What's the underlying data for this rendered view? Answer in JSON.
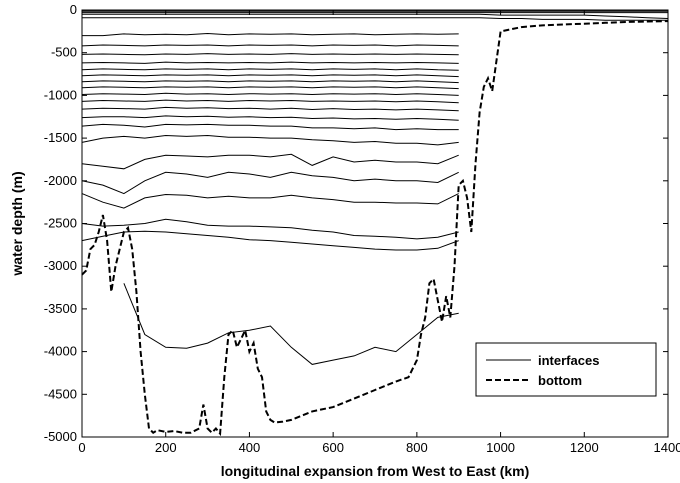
{
  "chart_data": {
    "type": "line",
    "xlabel": "longitudinal expansion from West to East (km)",
    "ylabel": "water depth (m)",
    "xlim": [
      0,
      1400
    ],
    "ylim": [
      -5000,
      0
    ],
    "xticks": [
      0,
      200,
      400,
      600,
      800,
      1000,
      1200,
      1400
    ],
    "yticks": [
      0,
      -500,
      -1000,
      -1500,
      -2000,
      -2500,
      -3000,
      -3500,
      -4000,
      -4500,
      -5000
    ],
    "grid": false,
    "legend_position": "lower-right",
    "legend": [
      "interfaces",
      "bottom"
    ],
    "bottom": {
      "name": "bottom",
      "style": "dashed",
      "x": [
        0,
        10,
        20,
        30,
        40,
        50,
        60,
        70,
        80,
        90,
        100,
        110,
        120,
        130,
        140,
        150,
        160,
        170,
        180,
        200,
        220,
        240,
        260,
        280,
        290,
        300,
        310,
        320,
        330,
        340,
        350,
        360,
        370,
        380,
        390,
        400,
        410,
        420,
        430,
        440,
        450,
        460,
        480,
        500,
        550,
        600,
        650,
        700,
        750,
        780,
        800,
        810,
        820,
        830,
        840,
        850,
        860,
        870,
        880,
        890,
        900,
        910,
        920,
        930,
        940,
        950,
        960,
        970,
        980,
        990,
        1000,
        1050,
        1100,
        1150,
        1200,
        1250,
        1300,
        1350,
        1400
      ],
      "y": [
        -3100,
        -3050,
        -2800,
        -2750,
        -2600,
        -2400,
        -2700,
        -3300,
        -3000,
        -2800,
        -2600,
        -2550,
        -2800,
        -3300,
        -4000,
        -4500,
        -4900,
        -4950,
        -4920,
        -4940,
        -4930,
        -4950,
        -4950,
        -4900,
        -4620,
        -4900,
        -4950,
        -4900,
        -4960,
        -4300,
        -3800,
        -3750,
        -3950,
        -3850,
        -3750,
        -4000,
        -3900,
        -4200,
        -4300,
        -4700,
        -4800,
        -4830,
        -4820,
        -4800,
        -4700,
        -4650,
        -4550,
        -4450,
        -4350,
        -4300,
        -4100,
        -3800,
        -3600,
        -3200,
        -3150,
        -3400,
        -3650,
        -3350,
        -3600,
        -3000,
        -2050,
        -2000,
        -2200,
        -2600,
        -1800,
        -1200,
        -900,
        -800,
        -950,
        -600,
        -250,
        -200,
        -180,
        -170,
        -160,
        -150,
        -140,
        -135,
        -130
      ]
    },
    "interfaces": {
      "name": "interfaces",
      "style": "solid",
      "x": [
        0,
        50,
        100,
        150,
        200,
        250,
        300,
        350,
        400,
        450,
        500,
        550,
        600,
        650,
        700,
        750,
        800,
        850,
        900
      ],
      "layers": [
        [
          -300,
          -300,
          -280,
          -290,
          -285,
          -290,
          -275,
          -290,
          -280,
          -285,
          -280,
          -290,
          -285,
          -280,
          -290,
          -285,
          -280,
          -285,
          -280
        ],
        [
          -420,
          -410,
          -415,
          -420,
          -410,
          -415,
          -410,
          -420,
          -410,
          -415,
          -410,
          -420,
          -410,
          -415,
          -410,
          -420,
          -410,
          -415,
          -420
        ],
        [
          -520,
          -515,
          -520,
          -525,
          -515,
          -520,
          -510,
          -520,
          -515,
          -520,
          -510,
          -520,
          -515,
          -520,
          -515,
          -520,
          -515,
          -520,
          -525
        ],
        [
          -620,
          -615,
          -620,
          -625,
          -610,
          -620,
          -615,
          -620,
          -615,
          -620,
          -610,
          -620,
          -615,
          -620,
          -615,
          -620,
          -615,
          -620,
          -625
        ],
        [
          -700,
          -690,
          -695,
          -700,
          -690,
          -695,
          -690,
          -700,
          -690,
          -695,
          -690,
          -700,
          -690,
          -695,
          -690,
          -700,
          -690,
          -700,
          -705
        ],
        [
          -770,
          -760,
          -765,
          -770,
          -760,
          -765,
          -760,
          -770,
          -760,
          -765,
          -760,
          -770,
          -760,
          -765,
          -760,
          -770,
          -760,
          -770,
          -780
        ],
        [
          -840,
          -830,
          -835,
          -840,
          -830,
          -835,
          -830,
          -840,
          -830,
          -835,
          -830,
          -840,
          -830,
          -835,
          -830,
          -840,
          -830,
          -840,
          -850
        ],
        [
          -910,
          -900,
          -905,
          -910,
          -900,
          -905,
          -900,
          -910,
          -900,
          -905,
          -900,
          -910,
          -900,
          -905,
          -900,
          -910,
          -900,
          -910,
          -920
        ],
        [
          -990,
          -980,
          -985,
          -990,
          -975,
          -985,
          -980,
          -990,
          -980,
          -985,
          -980,
          -990,
          -980,
          -985,
          -980,
          -990,
          -980,
          -990,
          -1000
        ],
        [
          -1070,
          -1060,
          -1065,
          -1070,
          -1055,
          -1065,
          -1060,
          -1070,
          -1060,
          -1065,
          -1060,
          -1070,
          -1065,
          -1070,
          -1065,
          -1075,
          -1065,
          -1075,
          -1085
        ],
        [
          -1160,
          -1150,
          -1155,
          -1160,
          -1140,
          -1150,
          -1145,
          -1155,
          -1150,
          -1160,
          -1150,
          -1165,
          -1155,
          -1165,
          -1160,
          -1170,
          -1160,
          -1170,
          -1180
        ],
        [
          -1260,
          -1250,
          -1250,
          -1260,
          -1240,
          -1250,
          -1245,
          -1255,
          -1250,
          -1260,
          -1255,
          -1270,
          -1265,
          -1275,
          -1270,
          -1280,
          -1270,
          -1280,
          -1290
        ],
        [
          -1360,
          -1340,
          -1350,
          -1370,
          -1340,
          -1345,
          -1340,
          -1350,
          -1350,
          -1360,
          -1360,
          -1380,
          -1380,
          -1390,
          -1380,
          -1400,
          -1390,
          -1400,
          -1400
        ],
        [
          -1550,
          -1500,
          -1480,
          -1500,
          -1470,
          -1480,
          -1470,
          -1490,
          -1490,
          -1500,
          -1500,
          -1520,
          -1530,
          -1550,
          -1540,
          -1560,
          -1560,
          -1580,
          -1550
        ],
        [
          -1800,
          -1830,
          -1860,
          -1750,
          -1700,
          -1710,
          -1720,
          -1700,
          -1700,
          -1720,
          -1690,
          -1820,
          -1720,
          -1780,
          -1760,
          -1780,
          -1780,
          -1800,
          -1700
        ],
        [
          -2000,
          -2050,
          -2150,
          -2000,
          -1900,
          -1920,
          -1960,
          -1900,
          -1920,
          -1960,
          -1900,
          -1940,
          -1960,
          -2000,
          -1980,
          -2000,
          -2000,
          -2020,
          -1900
        ],
        [
          -2150,
          -2250,
          -2320,
          -2200,
          -2160,
          -2170,
          -2200,
          -2180,
          -2200,
          -2200,
          -2170,
          -2200,
          -2220,
          -2250,
          -2250,
          -2260,
          -2260,
          -2270,
          -2150
        ],
        [
          -2500,
          -2530,
          -2520,
          -2500,
          -2450,
          -2480,
          -2520,
          -2530,
          -2530,
          -2540,
          -2550,
          -2580,
          -2600,
          -2640,
          -2650,
          -2660,
          -2680,
          -2660,
          -2600
        ],
        [
          -2700,
          -2650,
          -2600,
          -2590,
          -2600,
          -2620,
          -2640,
          -2660,
          -2690,
          -2700,
          -2720,
          -2740,
          -2760,
          -2780,
          -2800,
          -2810,
          -2810,
          -2790,
          -2700
        ],
        [
          null,
          null,
          -3200,
          -3800,
          -3950,
          -3960,
          -3900,
          -3780,
          -3750,
          -3700,
          -3950,
          -4150,
          -4100,
          -4050,
          -3950,
          -4000,
          -3800,
          -3600,
          -3550
        ]
      ]
    },
    "surface": {
      "x": [
        0,
        100,
        200,
        300,
        400,
        500,
        600,
        700,
        800,
        900,
        950,
        1000,
        1050,
        1100,
        1150,
        1200,
        1250,
        1300,
        1350,
        1400
      ],
      "layers": [
        [
          -5,
          -5,
          -5,
          -5,
          -5,
          -5,
          -5,
          -5,
          -5,
          -5,
          -5,
          -5,
          -5,
          -5,
          -5,
          -5,
          -5,
          -5,
          -5,
          -5
        ],
        [
          -15,
          -15,
          -15,
          -15,
          -15,
          -15,
          -15,
          -15,
          -15,
          -15,
          -15,
          -15,
          -15,
          -15,
          -15,
          -15,
          -15,
          -15,
          -15,
          -15
        ],
        [
          -30,
          -30,
          -30,
          -30,
          -30,
          -30,
          -30,
          -30,
          -30,
          -30,
          -30,
          -30,
          -30,
          -30,
          -30,
          -30,
          -30,
          -30,
          -30,
          -30
        ],
        [
          -50,
          -50,
          -50,
          -50,
          -50,
          -50,
          -50,
          -50,
          -50,
          -50,
          -50,
          -60,
          -60,
          -60,
          -60,
          -60,
          -70,
          -80,
          -90,
          -100
        ],
        [
          -90,
          -90,
          -90,
          -90,
          -90,
          -90,
          -90,
          -90,
          -90,
          -90,
          -90,
          -100,
          -100,
          -110,
          -110,
          -110,
          -120,
          -120,
          -120,
          -120
        ]
      ]
    }
  }
}
